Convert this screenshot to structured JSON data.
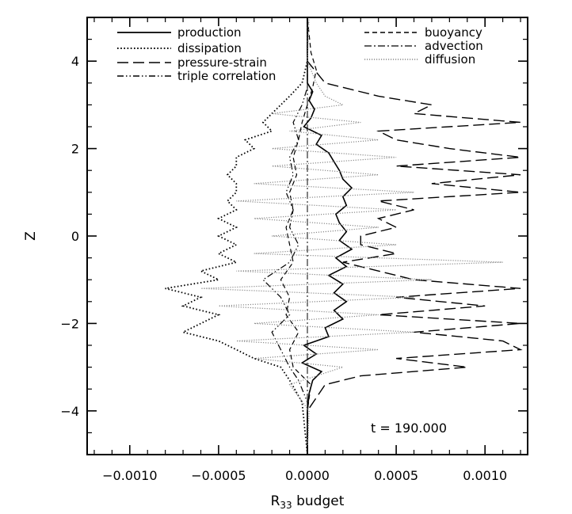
{
  "chart_data": {
    "type": "line",
    "title": "",
    "xlabel": "R",
    "xlabel_sub": "33",
    "xlabel_suffix": " budget",
    "ylabel": "Z",
    "xlim": [
      -0.00124,
      0.00124
    ],
    "ylim": [
      -5,
      5
    ],
    "xticks": [
      -0.001,
      -0.0005,
      0.0,
      0.0005,
      0.001
    ],
    "xtick_labels": [
      "−0.0010",
      "−0.0005",
      "0.0000",
      "0.0005",
      "0.0010"
    ],
    "yticks": [
      -4,
      -2,
      0,
      2,
      4
    ],
    "ytick_labels": [
      "−4",
      "−2",
      "0",
      "2",
      "4"
    ],
    "annotation": "t = 190.000",
    "legend_position": "top",
    "series": [
      {
        "name": "production",
        "style": "solid",
        "z": [
          -5.0,
          -4.0,
          -3.6,
          -3.3,
          -3.1,
          -2.9,
          -2.7,
          -2.5,
          -2.3,
          -2.1,
          -1.9,
          -1.7,
          -1.5,
          -1.3,
          -1.1,
          -0.9,
          -0.7,
          -0.5,
          -0.3,
          -0.1,
          0.1,
          0.3,
          0.5,
          0.7,
          0.9,
          1.1,
          1.3,
          1.5,
          1.7,
          1.9,
          2.1,
          2.3,
          2.5,
          2.7,
          2.9,
          3.1,
          3.3,
          3.5,
          4.0,
          5.0
        ],
        "values": [
          0.0,
          0.0,
          1e-05,
          3e-05,
          8e-05,
          -3e-05,
          5e-05,
          -2e-05,
          0.00012,
          0.0001,
          0.0002,
          0.00015,
          0.00022,
          0.00015,
          0.0002,
          0.00012,
          0.00022,
          0.00016,
          0.00025,
          0.00018,
          0.00022,
          0.00018,
          0.00016,
          0.00022,
          0.0002,
          0.00025,
          0.0002,
          0.00018,
          0.00015,
          0.00012,
          5e-05,
          8e-05,
          -2e-05,
          2e-05,
          4e-05,
          1e-05,
          3e-05,
          0.0,
          0.0,
          0.0
        ]
      },
      {
        "name": "dissipation",
        "style": "dotted",
        "z": [
          -5.0,
          -3.8,
          -3.3,
          -3.0,
          -2.8,
          -2.6,
          -2.4,
          -2.2,
          -2.0,
          -1.8,
          -1.6,
          -1.4,
          -1.2,
          -1.0,
          -0.8,
          -0.6,
          -0.4,
          -0.2,
          0.0,
          0.2,
          0.4,
          0.6,
          0.8,
          1.0,
          1.2,
          1.4,
          1.6,
          1.8,
          2.0,
          2.2,
          2.4,
          2.6,
          2.8,
          3.0,
          3.2,
          3.5,
          4.0,
          5.0
        ],
        "values": [
          0.0,
          -3e-05,
          -0.0001,
          -0.00015,
          -0.0003,
          -0.0004,
          -0.0005,
          -0.0007,
          -0.0006,
          -0.0005,
          -0.0007,
          -0.0006,
          -0.0008,
          -0.0005,
          -0.0006,
          -0.0004,
          -0.0005,
          -0.0004,
          -0.0005,
          -0.0004,
          -0.0005,
          -0.0004,
          -0.00045,
          -0.0004,
          -0.0004,
          -0.00045,
          -0.0004,
          -0.0004,
          -0.0003,
          -0.00035,
          -0.0002,
          -0.00025,
          -0.0002,
          -0.00015,
          -0.0001,
          -3e-05,
          0.0,
          0.0
        ]
      },
      {
        "name": "pressure-strain",
        "style": "long-dash",
        "z": [
          -5.0,
          -4.0,
          -3.4,
          -3.2,
          -3.0,
          -2.8,
          -2.6,
          -2.4,
          -2.2,
          -2.0,
          -1.8,
          -1.6,
          -1.4,
          -1.2,
          -1.0,
          -0.8,
          -0.6,
          -0.4,
          -0.2,
          0.0,
          0.2,
          0.4,
          0.6,
          0.8,
          1.0,
          1.2,
          1.4,
          1.6,
          1.8,
          2.0,
          2.2,
          2.4,
          2.6,
          2.8,
          3.0,
          3.2,
          3.5,
          4.0,
          5.0
        ],
        "values": [
          0.0,
          0.0,
          0.0001,
          0.0003,
          0.0009,
          0.0005,
          0.0012,
          0.0011,
          0.0006,
          0.0012,
          0.0004,
          0.001,
          0.0005,
          0.0012,
          0.0006,
          0.0004,
          0.0002,
          0.0005,
          0.0003,
          0.0003,
          0.0005,
          0.0004,
          0.0006,
          0.0004,
          0.0012,
          0.0007,
          0.0012,
          0.0005,
          0.0012,
          0.0008,
          0.0005,
          0.0004,
          0.0012,
          0.0006,
          0.0007,
          0.0004,
          0.0001,
          0.0,
          0.0
        ]
      },
      {
        "name": "triple correlation",
        "style": "dash-dot-dot",
        "z": [
          -5.0,
          -3.8,
          -3.3,
          -3.0,
          -2.6,
          -2.2,
          -1.8,
          -1.4,
          -1.0,
          -0.6,
          -0.2,
          0.2,
          0.6,
          1.0,
          1.4,
          1.8,
          2.2,
          2.6,
          3.0,
          3.4,
          4.0,
          5.0
        ],
        "values": [
          0.0,
          0.0,
          -5e-05,
          -0.0001,
          -0.00015,
          -0.0002,
          -0.0001,
          -0.00015,
          -0.00025,
          -0.0001,
          -5e-05,
          -0.0001,
          -8e-05,
          -0.00012,
          -8e-05,
          -0.0001,
          -5e-05,
          -8e-05,
          -3e-05,
          0.0,
          0.0,
          0.0
        ]
      },
      {
        "name": "buoyancy",
        "style": "short-dash",
        "z": [
          -5.0,
          -4.0,
          -3.4,
          -3.0,
          -2.6,
          -2.2,
          -1.8,
          -1.4,
          -1.0,
          -0.6,
          -0.2,
          0.2,
          0.6,
          1.0,
          1.4,
          1.8,
          2.2,
          2.6,
          3.0,
          3.4,
          3.8,
          4.2,
          5.0
        ],
        "values": [
          0.0,
          0.0,
          2e-05,
          -8e-05,
          -0.0001,
          -5e-05,
          -0.00012,
          -0.0001,
          -0.00015,
          -8e-05,
          -0.0001,
          -0.00012,
          -8e-05,
          -0.0001,
          -6e-05,
          -8e-05,
          -5e-05,
          -3e-05,
          0.0,
          3e-05,
          5e-05,
          2e-05,
          0.0
        ]
      },
      {
        "name": "advection",
        "style": "dash-dot",
        "z": [
          -5.0,
          -5.0,
          5.0
        ],
        "values": [
          0.0,
          0.0,
          0.0
        ]
      },
      {
        "name": "diffusion",
        "style": "fine-dot",
        "z": [
          -5.0,
          -4.0,
          -3.4,
          -3.0,
          -2.8,
          -2.6,
          -2.4,
          -2.2,
          -2.0,
          -1.8,
          -1.6,
          -1.4,
          -1.2,
          -1.0,
          -0.8,
          -0.6,
          -0.4,
          -0.2,
          0.0,
          0.2,
          0.4,
          0.6,
          0.8,
          1.0,
          1.2,
          1.4,
          1.6,
          1.8,
          2.0,
          2.2,
          2.4,
          2.6,
          2.8,
          3.0,
          3.2,
          3.5,
          4.0,
          5.0
        ],
        "values": [
          0.0,
          1e-05,
          -0.0001,
          0.0002,
          -0.0003,
          0.0004,
          -0.0004,
          0.0006,
          -0.0003,
          0.0004,
          -0.0005,
          0.0006,
          -0.0006,
          0.0007,
          -0.0004,
          0.0011,
          -0.0003,
          0.0005,
          -0.0002,
          0.0004,
          -0.0003,
          0.0005,
          -0.0004,
          0.0006,
          -0.0003,
          0.0004,
          -0.0002,
          0.0005,
          -0.0002,
          0.0004,
          -0.0001,
          0.0003,
          -0.0002,
          0.0002,
          0.0001,
          5e-05,
          0.0,
          1e-05
        ]
      }
    ]
  }
}
